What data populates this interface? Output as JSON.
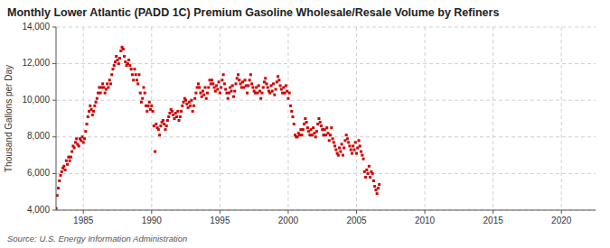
{
  "chart_data": {
    "type": "scatter",
    "title": "Monthly Lower Atlantic (PADD 1C) Premium Gasoline Wholesale/Resale Volume by Refiners",
    "ylabel": "Thousand Gallons per Day",
    "source": "Source: U.S. Energy Information Administration",
    "color": "#cc0000",
    "marker": "square",
    "grid": true,
    "xlim": [
      1983.0,
      2022.5
    ],
    "xticks": [
      1985,
      1990,
      1995,
      2000,
      2005,
      2010,
      2015,
      2020
    ],
    "ylim": [
      4000,
      14000
    ],
    "yticks": [
      {
        "value": 4000,
        "label": "4,000"
      },
      {
        "value": 6000,
        "label": "6,000"
      },
      {
        "value": 8000,
        "label": "8,000"
      },
      {
        "value": 10000,
        "label": "10,000"
      },
      {
        "value": 12000,
        "label": "12,000"
      },
      {
        "value": 14000,
        "label": "14,000"
      }
    ],
    "x": [
      1983.0,
      1983.083,
      1983.167,
      1983.25,
      1983.333,
      1983.417,
      1983.5,
      1983.583,
      1983.667,
      1983.75,
      1983.833,
      1983.917,
      1984.0,
      1984.083,
      1984.167,
      1984.25,
      1984.333,
      1984.417,
      1984.5,
      1984.583,
      1984.667,
      1984.75,
      1984.833,
      1984.917,
      1985.0,
      1985.083,
      1985.167,
      1985.25,
      1985.333,
      1985.417,
      1985.5,
      1985.583,
      1985.667,
      1985.75,
      1985.833,
      1985.917,
      1986.0,
      1986.083,
      1986.167,
      1986.25,
      1986.333,
      1986.417,
      1986.5,
      1986.583,
      1986.667,
      1986.75,
      1986.833,
      1986.917,
      1987.0,
      1987.083,
      1987.167,
      1987.25,
      1987.333,
      1987.417,
      1987.5,
      1987.583,
      1987.667,
      1987.75,
      1987.833,
      1987.917,
      1988.0,
      1988.083,
      1988.167,
      1988.25,
      1988.333,
      1988.417,
      1988.5,
      1988.583,
      1988.667,
      1988.75,
      1988.833,
      1988.917,
      1989.0,
      1989.083,
      1989.167,
      1989.25,
      1989.333,
      1989.417,
      1989.5,
      1989.583,
      1989.667,
      1989.75,
      1989.833,
      1989.917,
      1990.0,
      1990.083,
      1990.167,
      1990.25,
      1990.333,
      1990.417,
      1990.5,
      1990.583,
      1990.667,
      1990.75,
      1990.833,
      1990.917,
      1991.0,
      1991.083,
      1991.167,
      1991.25,
      1991.333,
      1991.417,
      1991.5,
      1991.583,
      1991.667,
      1991.75,
      1991.833,
      1991.917,
      1992.0,
      1992.083,
      1992.167,
      1992.25,
      1992.333,
      1992.417,
      1992.5,
      1992.583,
      1992.667,
      1992.75,
      1992.833,
      1992.917,
      1993.0,
      1993.083,
      1993.167,
      1993.25,
      1993.333,
      1993.417,
      1993.5,
      1993.583,
      1993.667,
      1993.75,
      1993.833,
      1993.917,
      1994.0,
      1994.083,
      1994.167,
      1994.25,
      1994.333,
      1994.417,
      1994.5,
      1994.583,
      1994.667,
      1994.75,
      1994.833,
      1994.917,
      1995.0,
      1995.083,
      1995.167,
      1995.25,
      1995.333,
      1995.417,
      1995.5,
      1995.583,
      1995.667,
      1995.75,
      1995.833,
      1995.917,
      1996.0,
      1996.083,
      1996.167,
      1996.25,
      1996.333,
      1996.417,
      1996.5,
      1996.583,
      1996.667,
      1996.75,
      1996.833,
      1996.917,
      1997.0,
      1997.083,
      1997.167,
      1997.25,
      1997.333,
      1997.417,
      1997.5,
      1997.583,
      1997.667,
      1997.75,
      1997.833,
      1997.917,
      1998.0,
      1998.083,
      1998.167,
      1998.25,
      1998.333,
      1998.417,
      1998.5,
      1998.583,
      1998.667,
      1998.75,
      1998.833,
      1998.917,
      1999.0,
      1999.083,
      1999.167,
      1999.25,
      1999.333,
      1999.417,
      1999.5,
      1999.583,
      1999.667,
      1999.75,
      1999.833,
      1999.917,
      2000.0,
      2000.083,
      2000.167,
      2000.25,
      2000.333,
      2000.417,
      2000.5,
      2000.583,
      2000.667,
      2000.75,
      2000.833,
      2000.917,
      2001.0,
      2001.083,
      2001.167,
      2001.25,
      2001.333,
      2001.417,
      2001.5,
      2001.583,
      2001.667,
      2001.75,
      2001.833,
      2001.917,
      2002.0,
      2002.083,
      2002.167,
      2002.25,
      2002.333,
      2002.417,
      2002.5,
      2002.583,
      2002.667,
      2002.75,
      2002.833,
      2002.917,
      2003.0,
      2003.083,
      2003.167,
      2003.25,
      2003.333,
      2003.417,
      2003.5,
      2003.583,
      2003.667,
      2003.75,
      2003.833,
      2003.917,
      2004.0,
      2004.083,
      2004.167,
      2004.25,
      2004.333,
      2004.417,
      2004.5,
      2004.583,
      2004.667,
      2004.75,
      2004.833,
      2004.917,
      2005.0,
      2005.083,
      2005.167,
      2005.25,
      2005.333,
      2005.417,
      2005.5,
      2005.583,
      2005.667,
      2005.75,
      2005.833,
      2005.917,
      2006.0,
      2006.083,
      2006.167,
      2006.25,
      2006.333,
      2006.417,
      2006.5,
      2006.583,
      2006.667
    ],
    "values": [
      4100,
      4800,
      5200,
      5600,
      5900,
      6100,
      6300,
      6400,
      6200,
      6700,
      6500,
      6900,
      6700,
      6900,
      7200,
      7500,
      7400,
      7700,
      7900,
      7600,
      7500,
      7900,
      7800,
      8000,
      7700,
      7900,
      8300,
      8700,
      9100,
      9400,
      9700,
      9500,
      9200,
      9400,
      9700,
      9900,
      10100,
      10400,
      10700,
      10400,
      10700,
      10900,
      10700,
      10400,
      10600,
      10900,
      10700,
      11100,
      10900,
      11400,
      11700,
      11900,
      12100,
      12400,
      12200,
      12000,
      12300,
      12700,
      12900,
      12800,
      12400,
      12100,
      11900,
      12000,
      12200,
      11900,
      11700,
      11400,
      11100,
      11700,
      11400,
      11100,
      10900,
      11400,
      10400,
      9900,
      10100,
      10700,
      10400,
      9700,
      9400,
      9700,
      9900,
      9500,
      9700,
      9400,
      8600,
      7200,
      8700,
      8500,
      8400,
      8100,
      8600,
      8800,
      8900,
      8700,
      8400,
      8600,
      8900,
      9100,
      9300,
      9500,
      9400,
      9200,
      9000,
      9300,
      9100,
      9400,
      8900,
      9100,
      9400,
      9700,
      9900,
      10100,
      10000,
      9800,
      9600,
      9900,
      9700,
      10000,
      9400,
      9700,
      10100,
      10400,
      10700,
      10900,
      10700,
      10400,
      10200,
      10500,
      10300,
      10700,
      10100,
      10400,
      10700,
      11100,
      10900,
      11100,
      10900,
      10700,
      10500,
      10800,
      10600,
      11000,
      10400,
      10700,
      11100,
      11400,
      10900,
      10600,
      10400,
      10100,
      10400,
      10700,
      10500,
      10800,
      10200,
      10500,
      10900,
      11200,
      11400,
      11100,
      10900,
      10700,
      11000,
      10700,
      11100,
      10800,
      10400,
      10800,
      11100,
      11400,
      10900,
      10700,
      10500,
      10400,
      10700,
      10400,
      10800,
      10500,
      10100,
      10400,
      10700,
      11000,
      11200,
      10900,
      10700,
      10500,
      10400,
      10800,
      10500,
      10900,
      10300,
      10600,
      11000,
      11300,
      11100,
      10800,
      10600,
      10400,
      10700,
      10400,
      10800,
      10500,
      10100,
      10400,
      9700,
      9400,
      9100,
      8700,
      8100,
      8000,
      8000,
      8200,
      8100,
      8400,
      8100,
      8400,
      8700,
      9000,
      8800,
      8500,
      8300,
      8100,
      8400,
      8100,
      8500,
      8200,
      8000,
      8300,
      8700,
      9000,
      8800,
      8600,
      8400,
      8100,
      8400,
      8100,
      8500,
      8200,
      7800,
      8100,
      8500,
      7900,
      7700,
      7500,
      7300,
      7100,
      7000,
      7400,
      7200,
      7600,
      7000,
      7400,
      7800,
      8100,
      7900,
      7700,
      7500,
      7300,
      7100,
      7500,
      7300,
      7700,
      7100,
      7400,
      7800,
      7500,
      7200,
      7000,
      6800,
      6100,
      5800,
      6200,
      6000,
      6400,
      5800,
      6100,
      6000,
      5600,
      5300,
      5100,
      4900,
      5200,
      5400
    ]
  }
}
